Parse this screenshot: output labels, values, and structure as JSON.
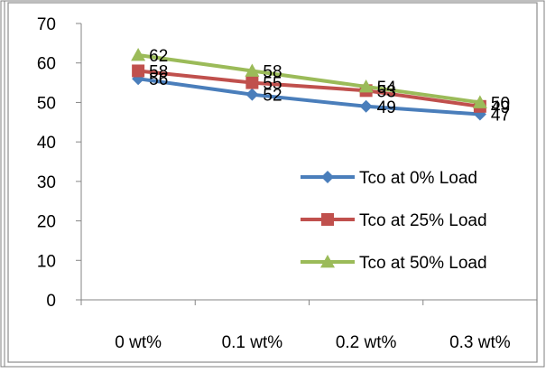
{
  "chart_data": {
    "type": "line",
    "categories": [
      "0 wt%",
      "0.1 wt%",
      "0.2 wt%",
      "0.3 wt%"
    ],
    "series": [
      {
        "name": "Tco at 0% Load",
        "values": [
          56,
          52,
          49,
          47
        ],
        "color": "#4a7ebb",
        "marker": "diamond"
      },
      {
        "name": "Tco at 25% Load",
        "values": [
          58,
          55,
          53,
          49
        ],
        "color": "#c0504d",
        "marker": "square"
      },
      {
        "name": "Tco at 50% Load",
        "values": [
          62,
          58,
          54,
          50
        ],
        "color": "#9bbb59",
        "marker": "triangle"
      }
    ],
    "y_ticks": [
      0,
      10,
      20,
      30,
      40,
      50,
      60,
      70
    ],
    "ylim": [
      0,
      70
    ],
    "grid": false,
    "legend_position": "right",
    "data_labels": true
  }
}
